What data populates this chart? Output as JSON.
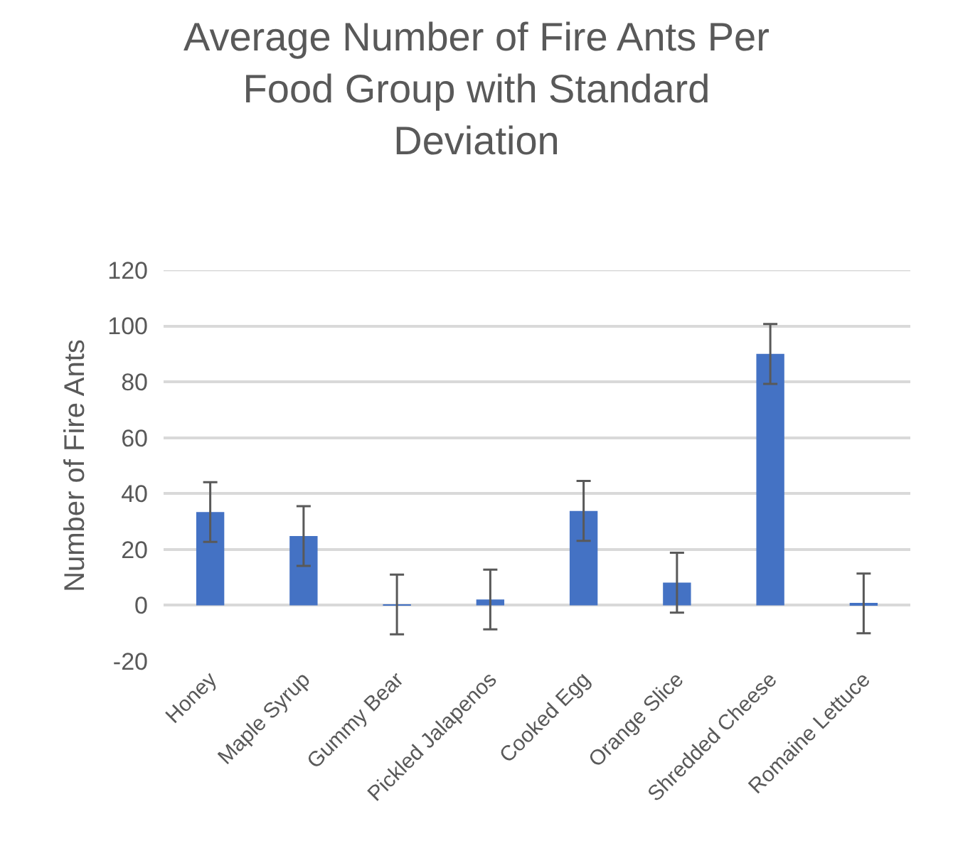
{
  "chart_data": {
    "type": "bar",
    "title": "Average Number of Fire Ants Per Food Group with Standard Deviation",
    "ylabel": "Number of Fire Ants",
    "categories": [
      "Honey",
      "Maple Syrup",
      "Gummy Bear",
      "Pickled Jalapenos",
      "Cooked Egg",
      "Orange Slice",
      "Shredded Cheese",
      "Romaine Lettuce"
    ],
    "values": [
      33.4,
      24.8,
      0.3,
      2.1,
      33.8,
      8.1,
      90,
      0.7
    ],
    "errors": [
      10.7,
      10.7,
      10.7,
      10.7,
      10.7,
      10.7,
      10.7,
      10.7
    ],
    "color": "#4472c4",
    "ylim": [
      -20,
      120
    ],
    "yticks": [
      -20,
      0,
      20,
      40,
      60,
      80,
      100,
      120
    ],
    "grid": "y"
  }
}
